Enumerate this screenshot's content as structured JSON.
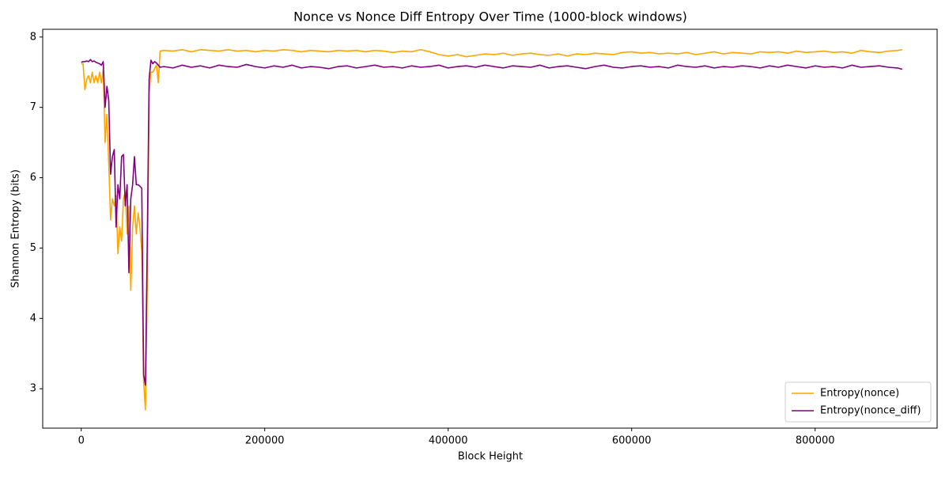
{
  "chart_data": {
    "type": "line",
    "title": "Nonce vs Nonce Diff Entropy Over Time (1000-block windows)",
    "x_label": "Block Height",
    "y_label": "Shannon Entropy (bits)",
    "x": [
      0,
      2000,
      4000,
      6000,
      8000,
      10000,
      12000,
      14000,
      16000,
      18000,
      20000,
      22000,
      24000,
      26000,
      28000,
      30000,
      32000,
      34000,
      36000,
      38000,
      40000,
      42000,
      44000,
      46000,
      48000,
      50000,
      52000,
      54000,
      56000,
      58000,
      60000,
      62000,
      64000,
      66000,
      68000,
      70000,
      72000,
      74000,
      76000,
      78000,
      80000,
      82000,
      84000,
      86000,
      90000,
      100000,
      110000,
      120000,
      130000,
      140000,
      150000,
      160000,
      170000,
      180000,
      190000,
      200000,
      210000,
      220000,
      230000,
      240000,
      250000,
      260000,
      270000,
      280000,
      290000,
      300000,
      310000,
      320000,
      330000,
      340000,
      350000,
      360000,
      370000,
      380000,
      390000,
      400000,
      410000,
      420000,
      430000,
      440000,
      450000,
      460000,
      470000,
      480000,
      490000,
      500000,
      510000,
      520000,
      530000,
      540000,
      550000,
      560000,
      570000,
      580000,
      590000,
      600000,
      610000,
      620000,
      630000,
      640000,
      650000,
      660000,
      670000,
      680000,
      690000,
      700000,
      710000,
      720000,
      730000,
      740000,
      750000,
      760000,
      770000,
      780000,
      790000,
      800000,
      810000,
      820000,
      830000,
      840000,
      850000,
      860000,
      870000,
      880000,
      890000,
      895000
    ],
    "series": [
      {
        "name": "Entropy(nonce)",
        "color": "#ffa500",
        "values": [
          7.62,
          7.62,
          7.25,
          7.4,
          7.45,
          7.35,
          7.5,
          7.35,
          7.45,
          7.35,
          7.5,
          7.35,
          7.55,
          6.5,
          6.9,
          6.2,
          5.4,
          5.7,
          5.6,
          5.75,
          4.92,
          5.3,
          5.1,
          5.7,
          5.8,
          5.2,
          5.6,
          4.4,
          5.3,
          5.6,
          5.2,
          5.5,
          5.3,
          4.95,
          3.1,
          2.7,
          4.5,
          7.2,
          7.5,
          7.5,
          7.55,
          7.6,
          7.35,
          7.8,
          7.81,
          7.8,
          7.82,
          7.79,
          7.82,
          7.81,
          7.8,
          7.82,
          7.8,
          7.81,
          7.79,
          7.81,
          7.8,
          7.82,
          7.81,
          7.79,
          7.81,
          7.8,
          7.79,
          7.81,
          7.8,
          7.81,
          7.79,
          7.81,
          7.8,
          7.78,
          7.8,
          7.79,
          7.82,
          7.79,
          7.75,
          7.73,
          7.75,
          7.72,
          7.74,
          7.76,
          7.75,
          7.77,
          7.74,
          7.76,
          7.77,
          7.75,
          7.74,
          7.76,
          7.73,
          7.76,
          7.75,
          7.77,
          7.76,
          7.75,
          7.78,
          7.79,
          7.77,
          7.78,
          7.76,
          7.77,
          7.76,
          7.78,
          7.75,
          7.77,
          7.79,
          7.76,
          7.78,
          7.77,
          7.76,
          7.79,
          7.78,
          7.79,
          7.77,
          7.8,
          7.78,
          7.79,
          7.8,
          7.78,
          7.79,
          7.77,
          7.81,
          7.79,
          7.78,
          7.8,
          7.81,
          7.82
        ]
      },
      {
        "name": "Entropy(nonce_diff)",
        "color": "#800080",
        "values": [
          7.64,
          7.65,
          7.65,
          7.66,
          7.65,
          7.68,
          7.65,
          7.66,
          7.64,
          7.63,
          7.62,
          7.6,
          7.65,
          7.0,
          7.3,
          7.1,
          6.05,
          6.3,
          6.4,
          5.3,
          5.9,
          5.7,
          6.3,
          6.33,
          5.6,
          5.9,
          4.65,
          5.7,
          5.9,
          6.3,
          5.9,
          5.9,
          5.88,
          5.85,
          3.2,
          3.05,
          5.1,
          7.4,
          7.67,
          7.62,
          7.65,
          7.63,
          7.6,
          7.57,
          7.58,
          7.56,
          7.6,
          7.57,
          7.59,
          7.56,
          7.6,
          7.58,
          7.57,
          7.61,
          7.58,
          7.56,
          7.59,
          7.57,
          7.6,
          7.56,
          7.58,
          7.57,
          7.55,
          7.58,
          7.59,
          7.56,
          7.58,
          7.6,
          7.57,
          7.58,
          7.56,
          7.59,
          7.57,
          7.58,
          7.6,
          7.56,
          7.58,
          7.59,
          7.57,
          7.6,
          7.58,
          7.56,
          7.59,
          7.58,
          7.57,
          7.6,
          7.56,
          7.58,
          7.59,
          7.57,
          7.55,
          7.58,
          7.6,
          7.57,
          7.56,
          7.58,
          7.59,
          7.57,
          7.58,
          7.56,
          7.6,
          7.58,
          7.57,
          7.59,
          7.56,
          7.58,
          7.57,
          7.59,
          7.58,
          7.56,
          7.59,
          7.57,
          7.6,
          7.58,
          7.56,
          7.59,
          7.57,
          7.58,
          7.56,
          7.6,
          7.57,
          7.58,
          7.59,
          7.57,
          7.56,
          7.54
        ]
      }
    ],
    "xlim": [
      -42000,
      933000
    ],
    "ylim": [
      2.44,
      8.11
    ],
    "xticks": [
      0,
      200000,
      400000,
      600000,
      800000
    ],
    "yticks": [
      3,
      4,
      5,
      6,
      7,
      8
    ],
    "legend": "lower right"
  }
}
